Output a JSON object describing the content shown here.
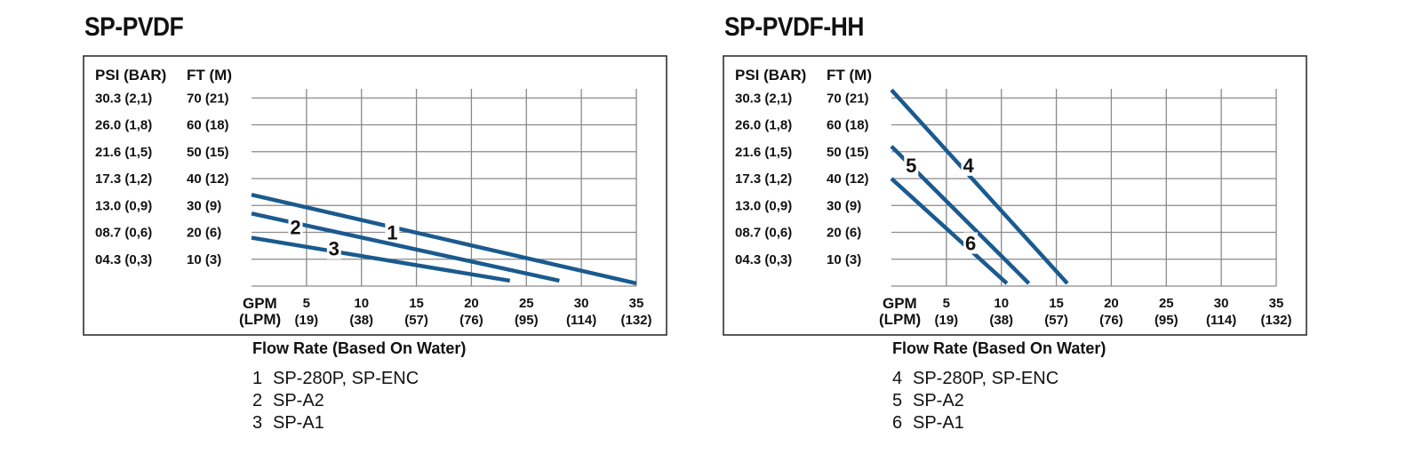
{
  "chart_data": [
    {
      "type": "line",
      "title": "SP-PVDF",
      "y_axis_headers": [
        "PSI (BAR)",
        "FT (M)"
      ],
      "y_tick_labels_psi": [
        "30.3 (2,1)",
        "26.0 (1,8)",
        "21.6 (1,5)",
        "17.3 (1,2)",
        "13.0 (0,9)",
        "08.7 (0,6)",
        "04.3 (0,3)"
      ],
      "y_tick_labels_ft": [
        "70 (21)",
        "60 (18)",
        "50 (15)",
        "40 (12)",
        "30 (9)",
        "20 (6)",
        "10 (3)"
      ],
      "y_tick_values_ft": [
        70,
        60,
        50,
        40,
        30,
        20,
        10
      ],
      "x_unit_labels": [
        "GPM",
        "(LPM)"
      ],
      "x_tick_labels_gpm": [
        "5",
        "10",
        "15",
        "20",
        "25",
        "30",
        "35"
      ],
      "x_tick_labels_lpm": [
        "(19)",
        "(38)",
        "(57)",
        "(76)",
        "(95)",
        "(114)",
        "(132)"
      ],
      "x_tick_values_gpm": [
        5,
        10,
        15,
        20,
        25,
        30,
        35
      ],
      "xlabel": "Flow Rate (Based On Water)",
      "xlim": [
        0,
        35
      ],
      "ylim": [
        0,
        80
      ],
      "grid": true,
      "line_color": "#1a5a8f",
      "series": [
        {
          "name": "1",
          "points": [
            [
              0,
              34
            ],
            [
              35,
              1
            ]
          ],
          "label_at": [
            12.8,
            20
          ]
        },
        {
          "name": "2",
          "points": [
            [
              0,
              27
            ],
            [
              28,
              2
            ]
          ],
          "label_at": [
            4,
            22
          ]
        },
        {
          "name": "3",
          "points": [
            [
              0,
              18
            ],
            [
              23.5,
              2
            ]
          ],
          "label_at": [
            7.5,
            14
          ]
        }
      ],
      "legend": [
        {
          "number": "1",
          "models": "SP-280P, SP-ENC"
        },
        {
          "number": "2",
          "models": "SP-A2"
        },
        {
          "number": "3",
          "models": "SP-A1"
        }
      ]
    },
    {
      "type": "line",
      "title": "SP-PVDF-HH",
      "y_axis_headers": [
        "PSI (BAR)",
        "FT (M)"
      ],
      "y_tick_labels_psi": [
        "30.3 (2,1)",
        "26.0 (1,8)",
        "21.6 (1,5)",
        "17.3 (1,2)",
        "13.0 (0,9)",
        "08.7 (0,6)",
        "04.3 (0,3)"
      ],
      "y_tick_labels_ft": [
        "70 (21)",
        "60 (18)",
        "50 (15)",
        "40 (12)",
        "30 (9)",
        "20 (6)",
        "10 (3)"
      ],
      "y_tick_values_ft": [
        70,
        60,
        50,
        40,
        30,
        20,
        10
      ],
      "x_unit_labels": [
        "GPM",
        "(LPM)"
      ],
      "x_tick_labels_gpm": [
        "5",
        "10",
        "15",
        "20",
        "25",
        "30",
        "35"
      ],
      "x_tick_labels_lpm": [
        "(19)",
        "(38)",
        "(57)",
        "(76)",
        "(95)",
        "(114)",
        "(132)"
      ],
      "x_tick_values_gpm": [
        5,
        10,
        15,
        20,
        25,
        30,
        35
      ],
      "xlabel": "Flow Rate (Based On Water)",
      "xlim": [
        0,
        35
      ],
      "ylim": [
        0,
        80
      ],
      "grid": true,
      "line_color": "#1a5a8f",
      "series": [
        {
          "name": "4",
          "points": [
            [
              0,
              73
            ],
            [
              16,
              1
            ]
          ],
          "label_at": [
            7,
            45
          ]
        },
        {
          "name": "5",
          "points": [
            [
              0,
              52
            ],
            [
              12.5,
              1
            ]
          ],
          "label_at": [
            1.8,
            45
          ]
        },
        {
          "name": "6",
          "points": [
            [
              0,
              40
            ],
            [
              10.5,
              1
            ]
          ],
          "label_at": [
            7.2,
            16
          ]
        }
      ],
      "legend": [
        {
          "number": "4",
          "models": "SP-280P, SP-ENC"
        },
        {
          "number": "5",
          "models": "SP-A2"
        },
        {
          "number": "6",
          "models": "SP-A1"
        }
      ]
    }
  ]
}
